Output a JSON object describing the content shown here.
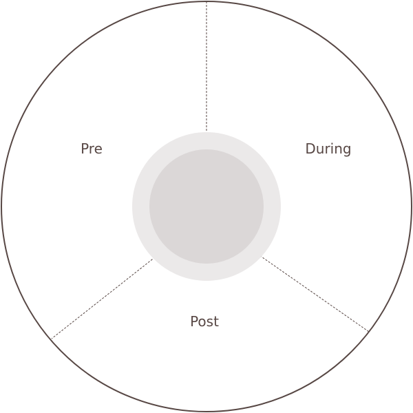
{
  "diagram": {
    "type": "cycle",
    "segments": [
      {
        "label": "Pre"
      },
      {
        "label": "During"
      },
      {
        "label": "Post"
      }
    ],
    "colors": {
      "outline": "#574744",
      "divider": "#574744",
      "hub_outer": "#ebe9e9",
      "hub_inner": "#dbd7d7",
      "label": "#574744"
    }
  }
}
